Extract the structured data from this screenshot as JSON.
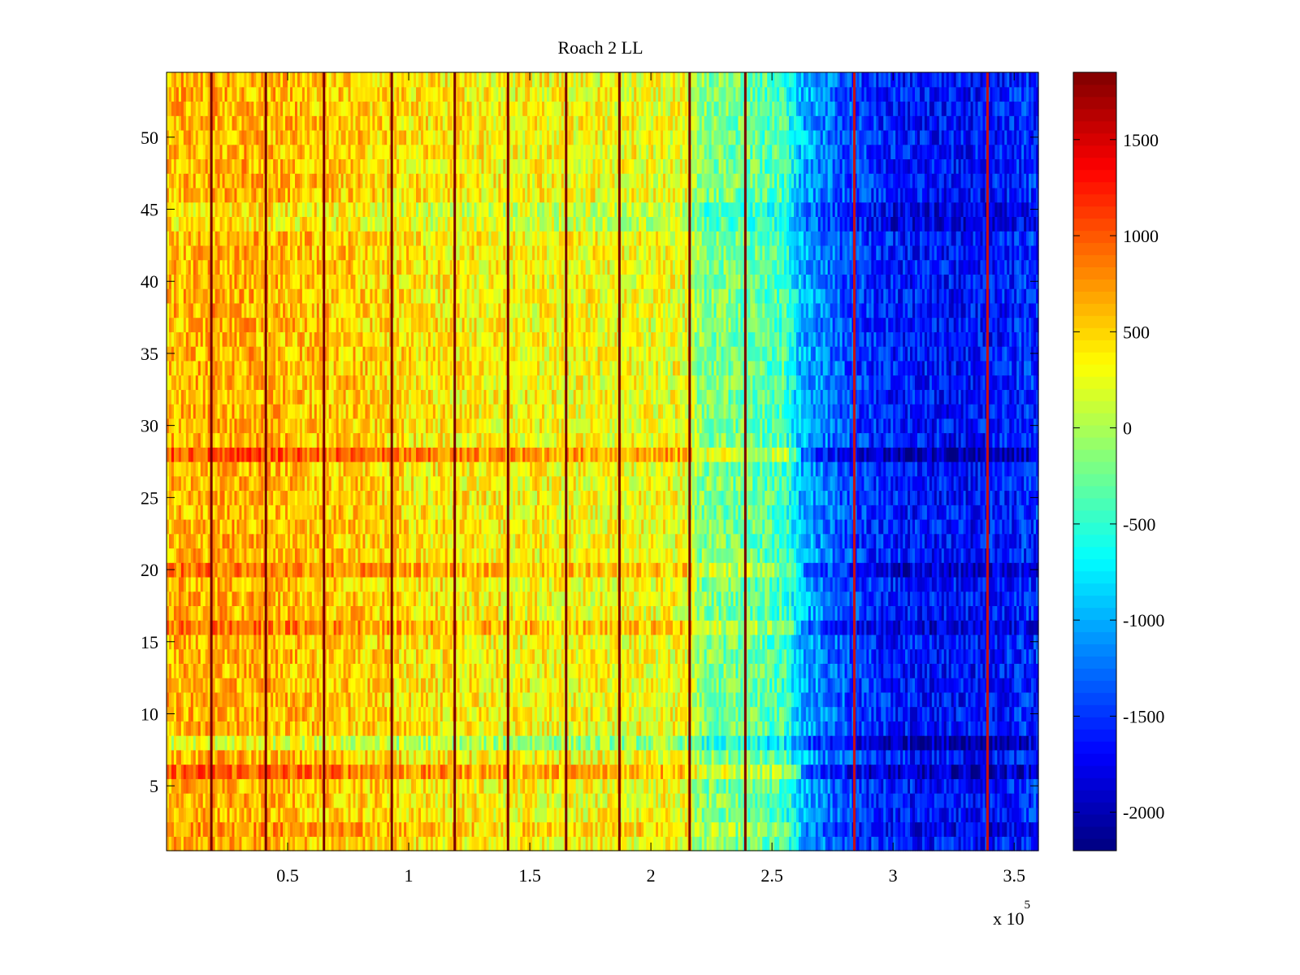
{
  "chart_data": {
    "type": "heatmap",
    "title": "Roach 2 LL",
    "xlabel": "",
    "ylabel": "",
    "x_exponent_label": "x 10",
    "x_exponent_power": "5",
    "xlim": [
      0,
      3.6
    ],
    "ylim": [
      0.5,
      54.5
    ],
    "x_ticks": [
      0.5,
      1,
      1.5,
      2,
      2.5,
      3,
      3.5
    ],
    "x_tick_labels": [
      "0.5",
      "1",
      "1.5",
      "2",
      "2.5",
      "3",
      "3.5"
    ],
    "y_ticks": [
      5,
      10,
      15,
      20,
      25,
      30,
      35,
      40,
      45,
      50
    ],
    "y_tick_labels": [
      "5",
      "10",
      "15",
      "20",
      "25",
      "30",
      "35",
      "40",
      "45",
      "50"
    ],
    "colormap": "jet",
    "colorbar": {
      "clim": [
        -2200,
        1850
      ],
      "ticks": [
        1500,
        1000,
        500,
        0,
        -500,
        -1000,
        -1500,
        -2000
      ],
      "tick_labels": [
        "1500",
        "1000",
        "500",
        "0",
        "-500",
        "-1000",
        "-1500",
        "-2000"
      ]
    },
    "rows": 54,
    "column_profile": {
      "x": [
        0.0,
        0.2,
        0.4,
        0.6,
        0.8,
        1.0,
        1.2,
        1.4,
        1.6,
        1.8,
        2.0,
        2.15,
        2.2,
        2.4,
        2.55,
        2.62,
        2.7,
        2.85,
        3.0,
        3.2,
        3.4,
        3.6
      ],
      "value": [
        600,
        650,
        620,
        560,
        520,
        420,
        380,
        330,
        320,
        300,
        280,
        260,
        -150,
        -250,
        -400,
        -950,
        -1150,
        -1450,
        -1600,
        -1650,
        -1650,
        -1500
      ]
    },
    "row_offsets": {
      "rows": [
        2,
        6,
        8,
        16,
        20,
        28,
        44,
        45
      ],
      "offset": [
        150,
        350,
        -400,
        250,
        250,
        400,
        -200,
        -200
      ]
    },
    "vertical_lines_x": [
      0.185,
      0.41,
      0.65,
      0.93,
      1.19,
      1.41,
      1.65,
      1.87,
      2.16,
      2.39,
      2.84,
      3.39
    ]
  }
}
